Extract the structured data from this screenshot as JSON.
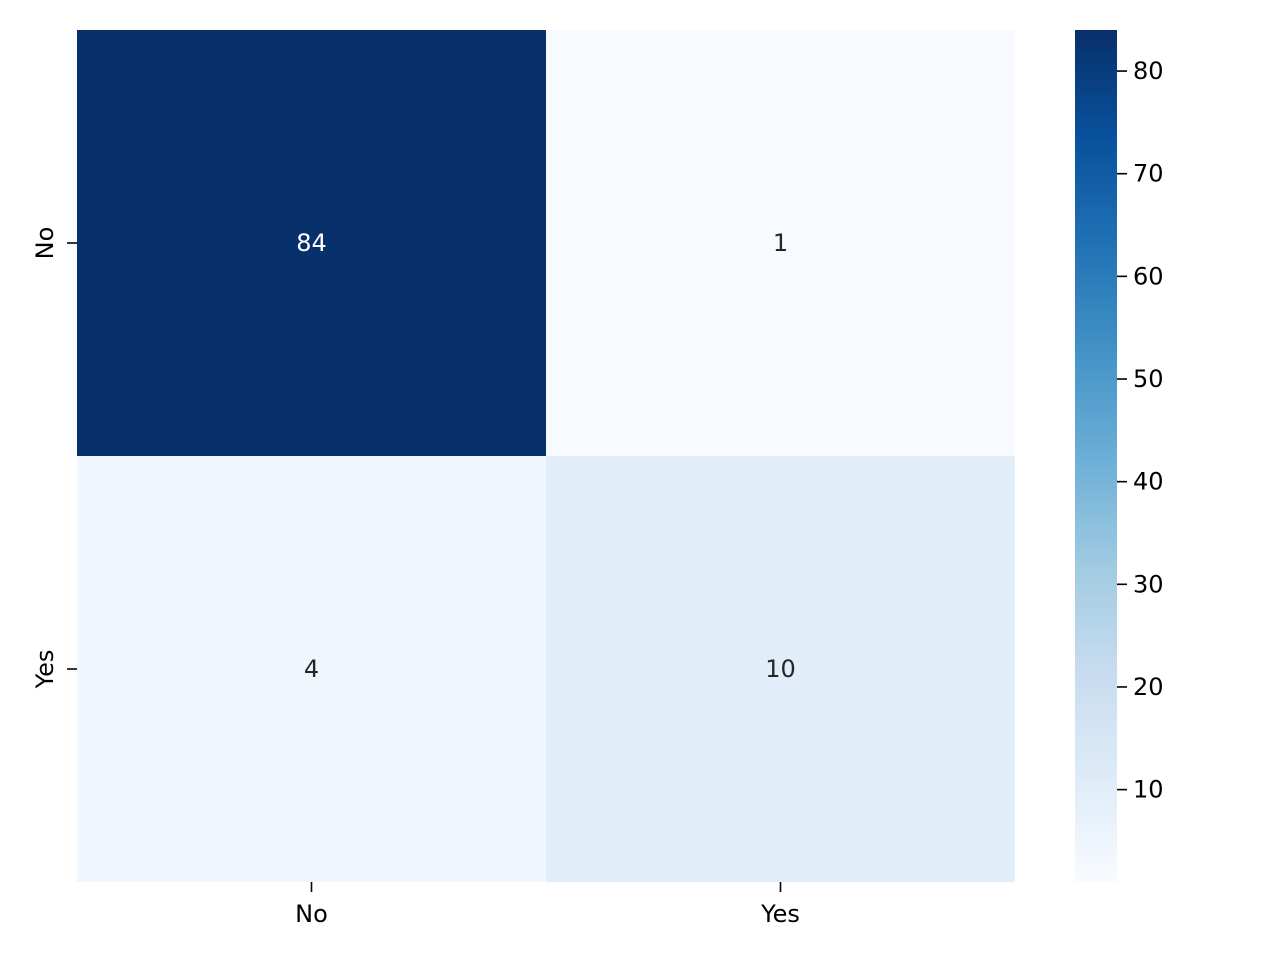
{
  "chart_data": {
    "type": "heatmap",
    "title": "",
    "xlabel": "",
    "ylabel": "",
    "x_categories": [
      "No",
      "Yes"
    ],
    "y_categories": [
      "No",
      "Yes"
    ],
    "values": [
      [
        84,
        1
      ],
      [
        4,
        10
      ]
    ],
    "annotations": [
      [
        "84",
        "1"
      ],
      [
        "4",
        "10"
      ]
    ],
    "colormap": "Blues",
    "colorbar": {
      "range": [
        1,
        84
      ],
      "ticks": [
        10,
        20,
        30,
        40,
        50,
        60,
        70,
        80
      ],
      "tick_labels": [
        "10",
        "20",
        "30",
        "40",
        "50",
        "60",
        "70",
        "80"
      ],
      "placement": "right"
    },
    "colors": {
      "low": "#f7fbff",
      "high": "#08306b",
      "annotation_light": "#ffffff",
      "annotation_dark": "#262626"
    },
    "grid": false,
    "legend": "colorbar-right"
  }
}
